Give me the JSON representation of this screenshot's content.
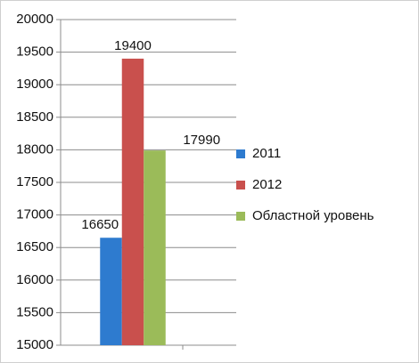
{
  "chart_data": {
    "type": "bar",
    "categories": [
      null
    ],
    "series": [
      {
        "name": "2011",
        "color": "#2e7bcf",
        "values": [
          16650
        ]
      },
      {
        "name": "2012",
        "color": "#c9504d",
        "values": [
          19400
        ]
      },
      {
        "name": "Областной уровень",
        "color": "#9bbb59",
        "values": [
          17990
        ]
      }
    ],
    "ylim": [
      15000,
      20000
    ],
    "yticks": [
      15000,
      15500,
      16000,
      16500,
      17000,
      17500,
      18000,
      18500,
      19000,
      19500,
      20000
    ],
    "grid": true,
    "legend": "right"
  }
}
